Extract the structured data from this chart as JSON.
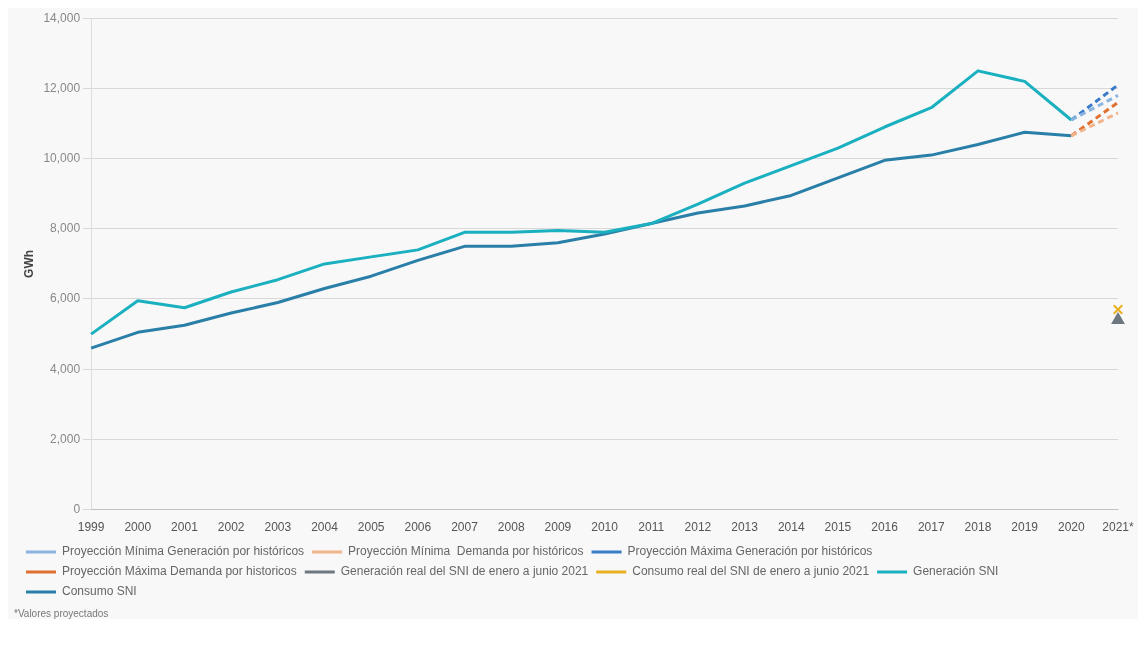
{
  "chart_data": {
    "type": "line",
    "ylabel": "GWh",
    "categories": [
      "1999",
      "2000",
      "2001",
      "2002",
      "2003",
      "2004",
      "2005",
      "2006",
      "2007",
      "2008",
      "2009",
      "2010",
      "2011",
      "2012",
      "2013",
      "2014",
      "2015",
      "2016",
      "2017",
      "2018",
      "2019",
      "2020",
      "2021*"
    ],
    "ylim": [
      0,
      14000
    ],
    "yticks": [
      {
        "value": 0,
        "label": "0"
      },
      {
        "value": 2000,
        "label": "2,000"
      },
      {
        "value": 4000,
        "label": "4,000"
      },
      {
        "value": 6000,
        "label": "6,000"
      },
      {
        "value": 8000,
        "label": "8,000"
      },
      {
        "value": 10000,
        "label": "10,000"
      },
      {
        "value": 12000,
        "label": "12,000"
      },
      {
        "value": 14000,
        "label": "14,000"
      }
    ],
    "grid": "y",
    "legend": "bottom",
    "marker": "none",
    "series": [
      {
        "name": "Proyección Mínima Generación por históricos",
        "color": "#8ab4e0",
        "line_style": "dashed",
        "values": [
          null,
          null,
          null,
          null,
          null,
          null,
          null,
          null,
          null,
          null,
          null,
          null,
          null,
          null,
          null,
          null,
          null,
          null,
          null,
          null,
          null,
          11100,
          11800
        ]
      },
      {
        "name": "Proyección Mínima  Demanda por históricos",
        "color": "#f2b48a",
        "line_style": "dashed",
        "values": [
          null,
          null,
          null,
          null,
          null,
          null,
          null,
          null,
          null,
          null,
          null,
          null,
          null,
          null,
          null,
          null,
          null,
          null,
          null,
          null,
          null,
          10650,
          11300
        ]
      },
      {
        "name": "Proyección Máxima Generación por históricos",
        "color": "#3a7cc8",
        "line_style": "dashed",
        "values": [
          null,
          null,
          null,
          null,
          null,
          null,
          null,
          null,
          null,
          null,
          null,
          null,
          null,
          null,
          null,
          null,
          null,
          null,
          null,
          null,
          null,
          11100,
          12100
        ]
      },
      {
        "name": "Proyección Máxima Demanda por historicos",
        "color": "#e07030",
        "line_style": "dashed",
        "values": [
          null,
          null,
          null,
          null,
          null,
          null,
          null,
          null,
          null,
          null,
          null,
          null,
          null,
          null,
          null,
          null,
          null,
          null,
          null,
          null,
          null,
          10650,
          11600
        ]
      },
      {
        "name": "Generación real del SNI de enero a junio 2021",
        "type": "scatter",
        "marker": "triangle",
        "color": "#6e7880",
        "values": [
          null,
          null,
          null,
          null,
          null,
          null,
          null,
          null,
          null,
          null,
          null,
          null,
          null,
          null,
          null,
          null,
          null,
          null,
          null,
          null,
          null,
          null,
          5400
        ]
      },
      {
        "name": "Consumo real del SNI de enero a junio 2021",
        "type": "scatter",
        "marker": "cross",
        "color": "#e8b020",
        "values": [
          null,
          null,
          null,
          null,
          null,
          null,
          null,
          null,
          null,
          null,
          null,
          null,
          null,
          null,
          null,
          null,
          null,
          null,
          null,
          null,
          null,
          null,
          5700
        ]
      },
      {
        "name": "Generación SNI",
        "color": "#1ab0c0",
        "line_style": "solid",
        "values": [
          5000,
          5950,
          5750,
          6200,
          6550,
          7000,
          7200,
          7400,
          7900,
          7900,
          7950,
          7900,
          8150,
          8700,
          9300,
          9800,
          10300,
          10900,
          11450,
          12500,
          12200,
          11100,
          null
        ]
      },
      {
        "name": "Consumo SNI",
        "color": "#2a7fa8",
        "line_style": "solid",
        "values": [
          4600,
          5050,
          5250,
          5600,
          5900,
          6300,
          6650,
          7100,
          7500,
          7500,
          7600,
          7850,
          8150,
          8450,
          8650,
          8950,
          9450,
          9950,
          10100,
          10400,
          10750,
          10650,
          null
        ]
      }
    ],
    "annotations": [
      "*Valores proyectados"
    ]
  }
}
